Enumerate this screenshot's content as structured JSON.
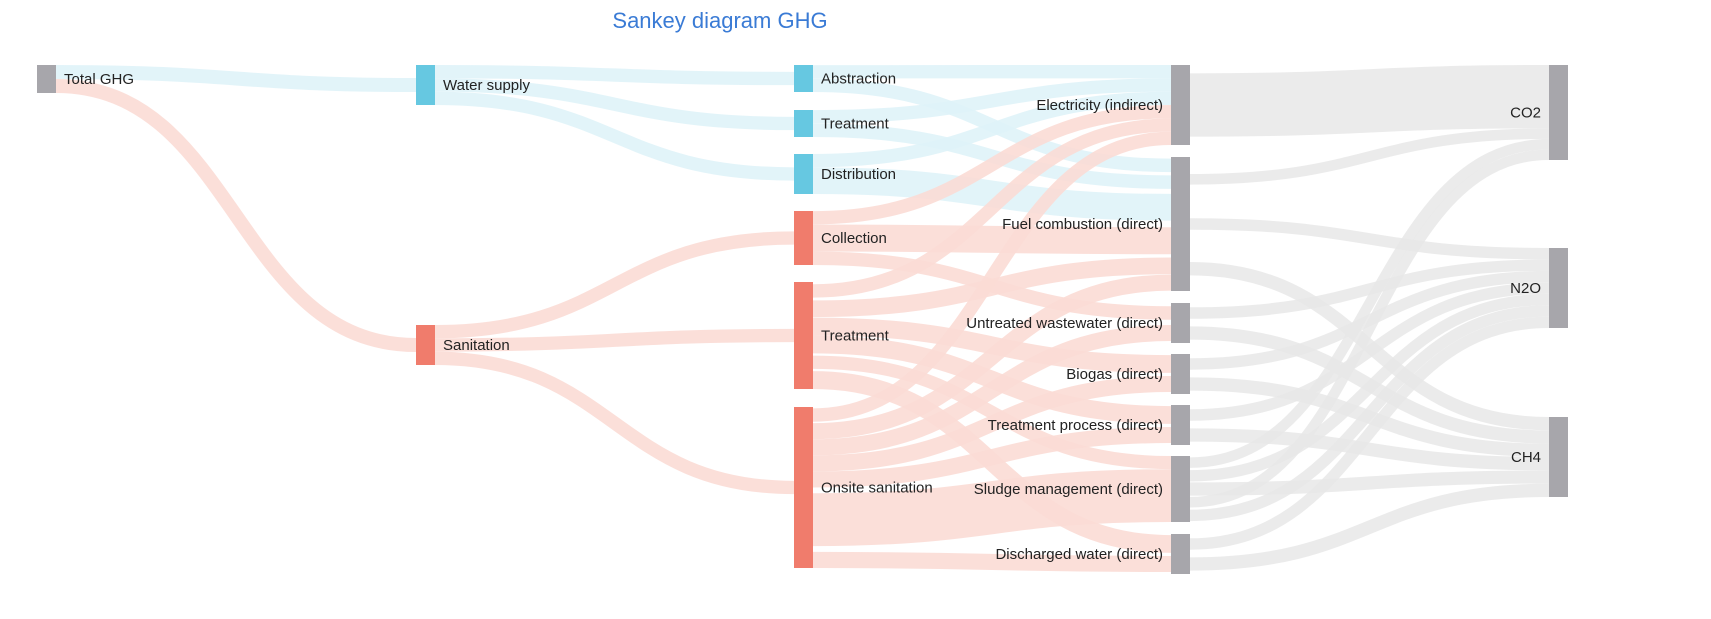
{
  "title": "Sankey diagram GHG",
  "colors": {
    "total": "#a7a6ab",
    "water": "#66c8e1",
    "sanitation": "#f07c6c",
    "source": "#a7a6ab",
    "gas": "#a7a6ab",
    "link_water": "#dff3f8",
    "link_sanitation": "#fbdcd5",
    "link_gray": "#e7e7e7"
  },
  "nodes": [
    {
      "id": "total",
      "label": "Total GHG",
      "group": "total"
    },
    {
      "id": "ws",
      "label": "Water supply",
      "group": "water"
    },
    {
      "id": "san",
      "label": "Sanitation",
      "group": "sanitation"
    },
    {
      "id": "abs",
      "label": "Abstraction",
      "group": "water"
    },
    {
      "id": "wtr",
      "label": "Treatment",
      "group": "water"
    },
    {
      "id": "dist",
      "label": "Distribution",
      "group": "water"
    },
    {
      "id": "col",
      "label": "Collection",
      "group": "sanitation"
    },
    {
      "id": "str",
      "label": "Treatment",
      "group": "sanitation"
    },
    {
      "id": "ons",
      "label": "Onsite sanitation",
      "group": "sanitation"
    },
    {
      "id": "elec",
      "label": "Electricity (indirect)",
      "group": "source"
    },
    {
      "id": "fuel",
      "label": "Fuel combustion (direct)",
      "group": "source"
    },
    {
      "id": "unt",
      "label": "Untreated wastewater (direct)",
      "group": "source"
    },
    {
      "id": "bio",
      "label": "Biogas (direct)",
      "group": "source"
    },
    {
      "id": "tp",
      "label": "Treatment process (direct)",
      "group": "source"
    },
    {
      "id": "sludge",
      "label": "Sludge management (direct)",
      "group": "source"
    },
    {
      "id": "dis",
      "label": "Discharged water (direct)",
      "group": "source"
    },
    {
      "id": "co2",
      "label": "CO2",
      "group": "gas"
    },
    {
      "id": "n2o",
      "label": "N2O",
      "group": "gas"
    },
    {
      "id": "ch4",
      "label": "CH4",
      "group": "gas"
    }
  ],
  "links": [
    {
      "source": "total",
      "target": "ws",
      "value": 12,
      "group": "water"
    },
    {
      "source": "total",
      "target": "san",
      "value": 12,
      "group": "sanitation"
    },
    {
      "source": "ws",
      "target": "abs",
      "value": 4,
      "group": "water"
    },
    {
      "source": "ws",
      "target": "wtr",
      "value": 4,
      "group": "water"
    },
    {
      "source": "ws",
      "target": "dist",
      "value": 4,
      "group": "water"
    },
    {
      "source": "san",
      "target": "col",
      "value": 4,
      "group": "sanitation"
    },
    {
      "source": "san",
      "target": "str",
      "value": 4,
      "group": "sanitation"
    },
    {
      "source": "san",
      "target": "ons",
      "value": 4,
      "group": "sanitation"
    },
    {
      "source": "abs",
      "target": "elec",
      "value": 4,
      "group": "water"
    },
    {
      "source": "abs",
      "target": "fuel",
      "value": 4,
      "group": "water"
    },
    {
      "source": "wtr",
      "target": "elec",
      "value": 4,
      "group": "water"
    },
    {
      "source": "wtr",
      "target": "fuel",
      "value": 4,
      "group": "water"
    },
    {
      "source": "dist",
      "target": "elec",
      "value": 4,
      "group": "water"
    },
    {
      "source": "dist",
      "target": "fuel",
      "value": 8,
      "group": "water"
    },
    {
      "source": "col",
      "target": "elec",
      "value": 4,
      "group": "sanitation"
    },
    {
      "source": "col",
      "target": "fuel",
      "value": 8,
      "group": "sanitation"
    },
    {
      "source": "col",
      "target": "unt",
      "value": 4,
      "group": "sanitation"
    },
    {
      "source": "str",
      "target": "elec",
      "value": 4,
      "group": "sanitation"
    },
    {
      "source": "str",
      "target": "fuel",
      "value": 4,
      "group": "sanitation"
    },
    {
      "source": "str",
      "target": "bio",
      "value": 4,
      "group": "sanitation"
    },
    {
      "source": "str",
      "target": "tp",
      "value": 4,
      "group": "sanitation"
    },
    {
      "source": "str",
      "target": "sludge",
      "value": 4,
      "group": "sanitation"
    },
    {
      "source": "str",
      "target": "dis",
      "value": 4,
      "group": "sanitation"
    },
    {
      "source": "ons",
      "target": "elec",
      "value": 4,
      "group": "sanitation"
    },
    {
      "source": "ons",
      "target": "fuel",
      "value": 4,
      "group": "sanitation"
    },
    {
      "source": "ons",
      "target": "unt",
      "value": 4,
      "group": "sanitation"
    },
    {
      "source": "ons",
      "target": "bio",
      "value": 4,
      "group": "sanitation"
    },
    {
      "source": "ons",
      "target": "tp",
      "value": 4,
      "group": "sanitation"
    },
    {
      "source": "ons",
      "target": "sludge",
      "value": 16,
      "group": "sanitation"
    },
    {
      "source": "ons",
      "target": "dis",
      "value": 4,
      "group": "sanitation"
    },
    {
      "source": "elec",
      "target": "co2",
      "value": 24,
      "group": "gray"
    },
    {
      "source": "fuel",
      "target": "co2",
      "value": 4,
      "group": "gray"
    },
    {
      "source": "fuel",
      "target": "n2o",
      "value": 4,
      "group": "gray"
    },
    {
      "source": "fuel",
      "target": "ch4",
      "value": 4,
      "group": "gray"
    },
    {
      "source": "unt",
      "target": "n2o",
      "value": 4,
      "group": "gray"
    },
    {
      "source": "unt",
      "target": "ch4",
      "value": 4,
      "group": "gray"
    },
    {
      "source": "bio",
      "target": "n2o",
      "value": 4,
      "group": "gray"
    },
    {
      "source": "bio",
      "target": "ch4",
      "value": 4,
      "group": "gray"
    },
    {
      "source": "tp",
      "target": "n2o",
      "value": 4,
      "group": "gray"
    },
    {
      "source": "tp",
      "target": "ch4",
      "value": 4,
      "group": "gray"
    },
    {
      "source": "sludge",
      "target": "co2",
      "value": 4,
      "group": "gray"
    },
    {
      "source": "sludge",
      "target": "n2o",
      "value": 4,
      "group": "gray"
    },
    {
      "source": "sludge",
      "target": "ch4",
      "value": 4,
      "group": "gray"
    },
    {
      "source": "sludge",
      "target": "co2",
      "value": 4,
      "group": "gray"
    },
    {
      "source": "sludge",
      "target": "n2o",
      "value": 4,
      "group": "gray"
    },
    {
      "source": "dis",
      "target": "n2o",
      "value": 4,
      "group": "gray"
    },
    {
      "source": "dis",
      "target": "ch4",
      "value": 4,
      "group": "gray"
    }
  ]
}
